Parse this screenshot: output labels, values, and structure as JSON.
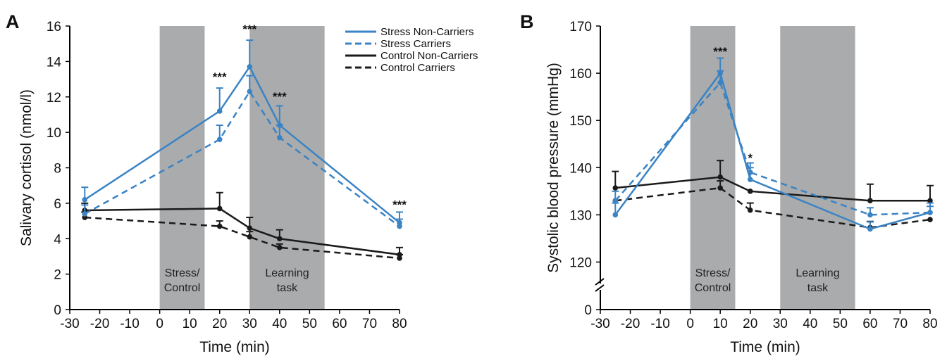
{
  "colors": {
    "stress": "#3a83c4",
    "control": "#1a1a1a",
    "shade": "#a9abad"
  },
  "chart_data": [
    {
      "type": "line",
      "panel": "A",
      "xlabel": "Time (min)",
      "ylabel": "Salivary cortisol (nmol/l)",
      "xlim": [
        -30,
        80
      ],
      "ylim": [
        0,
        16
      ],
      "xticks": [
        "-30",
        "-20",
        "-10",
        "0",
        "10",
        "20",
        "30",
        "40",
        "50",
        "60",
        "70",
        "80"
      ],
      "yticks": [
        "0",
        "2",
        "4",
        "6",
        "8",
        "10",
        "12",
        "14",
        "16"
      ],
      "shaded_regions": [
        {
          "from": 0,
          "to": 15,
          "label": [
            "Stress/",
            "Control"
          ]
        },
        {
          "from": 30,
          "to": 55,
          "label": [
            "Learning",
            "task"
          ]
        }
      ],
      "legend": {
        "position": "top-right"
      },
      "series": [
        {
          "name": "Stress Non-Carriers",
          "group": "stress",
          "dashed": false,
          "x": [
            -25,
            20,
            30,
            40,
            80
          ],
          "y": [
            6.2,
            11.2,
            13.7,
            10.4,
            4.9
          ],
          "err": [
            0.7,
            1.3,
            1.5,
            1.1,
            0.6
          ]
        },
        {
          "name": "Stress Carriers",
          "group": "stress",
          "dashed": true,
          "x": [
            -25,
            20,
            30,
            40,
            80
          ],
          "y": [
            5.4,
            9.6,
            12.3,
            9.7,
            4.7
          ],
          "err": [
            0.5,
            0.8,
            0.9,
            0.7,
            0.4
          ]
        },
        {
          "name": "Control Non-Carriers",
          "group": "control",
          "dashed": false,
          "x": [
            -25,
            20,
            30,
            40,
            80
          ],
          "y": [
            5.6,
            5.7,
            4.6,
            4.0,
            3.1
          ],
          "err": [
            0.4,
            0.9,
            0.6,
            0.5,
            0.4
          ]
        },
        {
          "name": "Control Carriers",
          "group": "control",
          "dashed": true,
          "x": [
            -25,
            20,
            30,
            40,
            80
          ],
          "y": [
            5.2,
            4.7,
            4.1,
            3.5,
            2.9
          ],
          "err": [
            0.3,
            0.3,
            0.3,
            0.2,
            0.2
          ]
        }
      ],
      "annotations": [
        {
          "x": 20,
          "y": 13.1,
          "text": "***"
        },
        {
          "x": 30,
          "y": 15.8,
          "text": "***"
        },
        {
          "x": 40,
          "y": 12.0,
          "text": "***"
        },
        {
          "x": 80,
          "y": 5.9,
          "text": "***"
        }
      ]
    },
    {
      "type": "line",
      "panel": "B",
      "xlabel": "Time (min)",
      "ylabel": "Systolic blood pressure (mmHg)",
      "xlim": [
        -30,
        80
      ],
      "ylim": [
        0,
        170
      ],
      "axis_break": true,
      "xticks": [
        "-30",
        "-20",
        "-10",
        "0",
        "10",
        "20",
        "30",
        "40",
        "50",
        "60",
        "70",
        "80"
      ],
      "yticks": [
        "0",
        "120",
        "130",
        "140",
        "150",
        "160",
        "170"
      ],
      "shaded_regions": [
        {
          "from": 0,
          "to": 15,
          "label": [
            "Stress/",
            "Control"
          ]
        },
        {
          "from": 30,
          "to": 55,
          "label": [
            "Learning",
            "task"
          ]
        }
      ],
      "series": [
        {
          "name": "Stress Non-Carriers",
          "group": "stress",
          "dashed": false,
          "x": [
            -25,
            10,
            20,
            60,
            80
          ],
          "y": [
            130,
            160,
            137.5,
            127,
            130.5
          ],
          "err": [
            2.5,
            3.2,
            2.5,
            1.5,
            2.0
          ]
        },
        {
          "name": "Stress Carriers",
          "group": "stress",
          "dashed": true,
          "x": [
            -25,
            10,
            20,
            60,
            80
          ],
          "y": [
            133,
            158,
            139,
            130,
            130.5
          ],
          "err": [
            2.0,
            2.5,
            2.0,
            1.5,
            1.3
          ]
        },
        {
          "name": "Control Non-Carriers",
          "group": "control",
          "dashed": false,
          "x": [
            -25,
            10,
            20,
            60,
            80
          ],
          "y": [
            135.7,
            138,
            135,
            133,
            133
          ],
          "err": [
            3.5,
            3.5,
            0,
            3.5,
            3.2
          ]
        },
        {
          "name": "Control Carriers",
          "group": "control",
          "dashed": true,
          "x": [
            -25,
            10,
            20,
            60,
            80
          ],
          "y": [
            133,
            135.7,
            131,
            127.3,
            129
          ],
          "err": [
            0,
            1.5,
            1.5,
            1.3,
            0
          ]
        }
      ],
      "annotations": [
        {
          "x": 10,
          "y": 164.5,
          "text": "***"
        },
        {
          "x": 20,
          "y": 142,
          "text": "*"
        }
      ]
    }
  ]
}
